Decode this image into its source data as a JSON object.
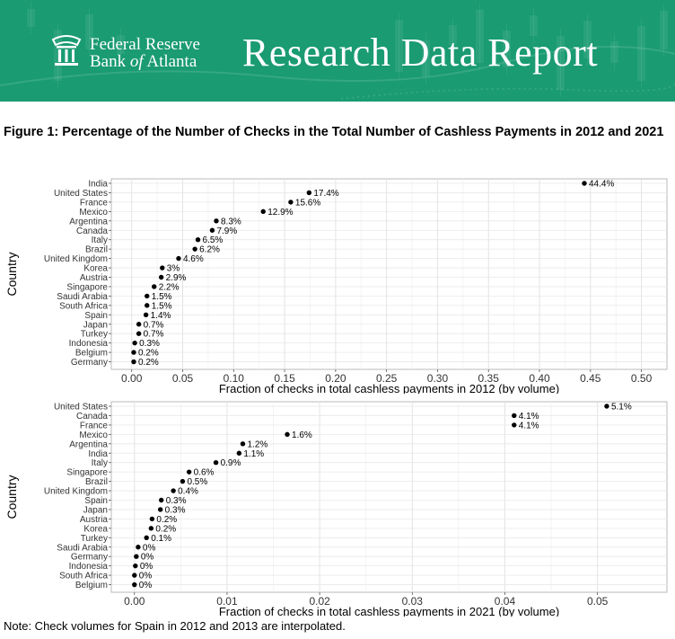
{
  "header": {
    "org_line1": "Federal Reserve",
    "org_line2_part1": "Bank ",
    "org_line2_part2": "of",
    "org_line2_part3": " Atlanta",
    "report_title": "Research Data Report",
    "banner_color": "#1a9b72",
    "logo_icon": "fed-logo-icon"
  },
  "figure_title": "Figure 1: Percentage of the Number of Checks in the Total Number of Cashless Payments in 2012 and 2021",
  "note": "Note: Check volumes for Spain in 2012 and 2013 are interpolated.",
  "chart_data": [
    {
      "type": "scatter",
      "xlabel": "Fraction of checks in total cashless payments in 2012 (by volume)",
      "ylabel": "Country",
      "xlim": [
        -0.02,
        0.525
      ],
      "xticks": [
        0.0,
        0.05,
        0.1,
        0.15,
        0.2,
        0.25,
        0.3,
        0.35,
        0.4,
        0.45,
        0.5
      ],
      "xtick_labels": [
        "0.00",
        "0.05",
        "0.10",
        "0.15",
        "0.20",
        "0.25",
        "0.30",
        "0.35",
        "0.40",
        "0.45",
        "0.50"
      ],
      "grid": true,
      "categories": [
        "India",
        "United States",
        "France",
        "Mexico",
        "Argentina",
        "Canada",
        "Italy",
        "Brazil",
        "United Kingdom",
        "Korea",
        "Austria",
        "Singapore",
        "Saudi Arabia",
        "South Africa",
        "Spain",
        "Japan",
        "Turkey",
        "Indonesia",
        "Belgium",
        "Germany"
      ],
      "values": [
        0.444,
        0.174,
        0.156,
        0.129,
        0.083,
        0.079,
        0.065,
        0.062,
        0.046,
        0.03,
        0.029,
        0.022,
        0.015,
        0.015,
        0.014,
        0.007,
        0.007,
        0.003,
        0.002,
        0.002
      ],
      "labels": [
        "44.4%",
        "17.4%",
        "15.6%",
        "12.9%",
        "8.3%",
        "7.9%",
        "6.5%",
        "6.2%",
        "4.6%",
        "3%",
        "2.9%",
        "2.2%",
        "1.5%",
        "1.5%",
        "1.4%",
        "0.7%",
        "0.7%",
        "0.3%",
        "0.2%",
        "0.2%"
      ]
    },
    {
      "type": "scatter",
      "xlabel": "Fraction of checks in total cashless payments in 2021 (by volume)",
      "ylabel": "Country",
      "xlim": [
        -0.0025,
        0.0575
      ],
      "xticks": [
        0.0,
        0.01,
        0.02,
        0.03,
        0.04,
        0.05
      ],
      "xtick_labels": [
        "0.00",
        "0.01",
        "0.02",
        "0.03",
        "0.04",
        "0.05"
      ],
      "grid": true,
      "categories": [
        "United States",
        "Canada",
        "France",
        "Mexico",
        "Argentina",
        "India",
        "Italy",
        "Singapore",
        "Brazil",
        "United Kingdom",
        "Spain",
        "Japan",
        "Austria",
        "Korea",
        "Turkey",
        "Saudi Arabia",
        "Germany",
        "Indonesia",
        "South Africa",
        "Belgium"
      ],
      "values": [
        0.051,
        0.041,
        0.041,
        0.0165,
        0.0117,
        0.0113,
        0.0088,
        0.0059,
        0.0052,
        0.0042,
        0.0029,
        0.0028,
        0.0019,
        0.0018,
        0.0013,
        0.0004,
        0.0002,
        0.0001,
        0.0,
        0.0
      ],
      "labels": [
        "5.1%",
        "4.1%",
        "4.1%",
        "1.6%",
        "1.2%",
        "1.1%",
        "0.9%",
        "0.6%",
        "0.5%",
        "0.4%",
        "0.3%",
        "0.3%",
        "0.2%",
        "0.2%",
        "0.1%",
        "0%",
        "0%",
        "0%",
        "0%",
        "0%"
      ]
    }
  ]
}
